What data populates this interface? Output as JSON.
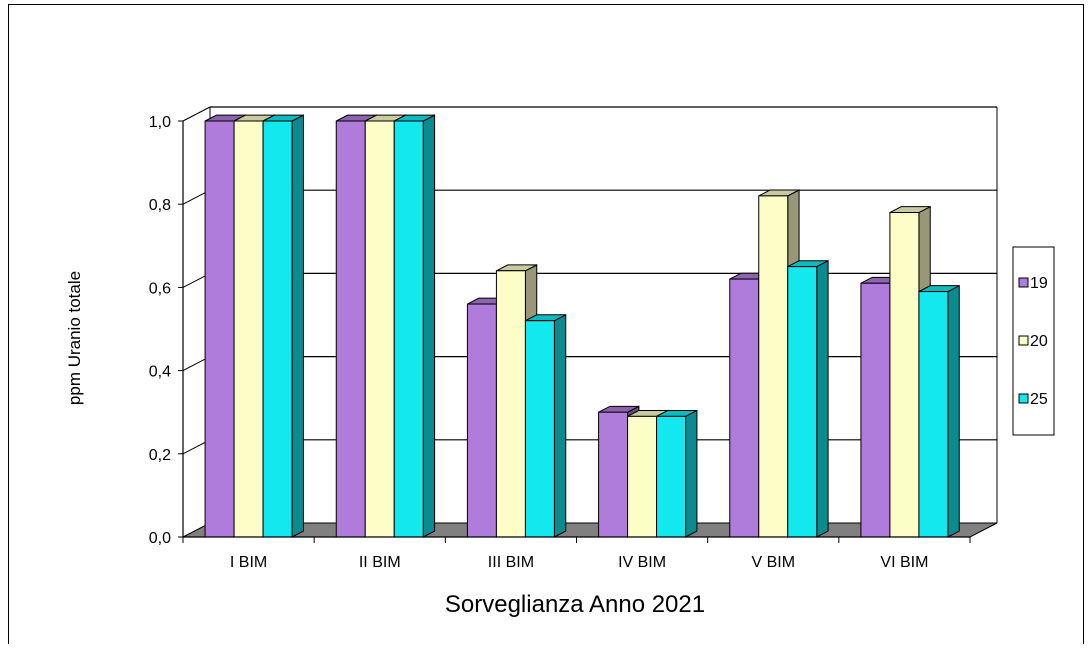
{
  "chart_data": {
    "type": "bar",
    "title": "",
    "xlabel": "Sorveglianza Anno 2021",
    "ylabel": "ppm Uranio totale",
    "ylim": [
      0,
      1.0
    ],
    "yticks": [
      "0,0",
      "0,2",
      "0,4",
      "0,6",
      "0,8",
      "1,0"
    ],
    "grid": true,
    "legend_position": "right",
    "categories": [
      "I BIM",
      "II BIM",
      "III BIM",
      "IV BIM",
      "V BIM",
      "VI BIM"
    ],
    "series": [
      {
        "name": "19",
        "color": "#b07cdc",
        "values": [
          1.0,
          1.0,
          0.56,
          0.3,
          0.62,
          0.61
        ]
      },
      {
        "name": "20",
        "color": "#fdfdc8",
        "values": [
          1.0,
          1.0,
          0.64,
          0.29,
          0.82,
          0.78
        ]
      },
      {
        "name": "25",
        "color": "#12e8ee",
        "values": [
          1.0,
          1.0,
          0.52,
          0.29,
          0.65,
          0.59
        ]
      }
    ]
  }
}
